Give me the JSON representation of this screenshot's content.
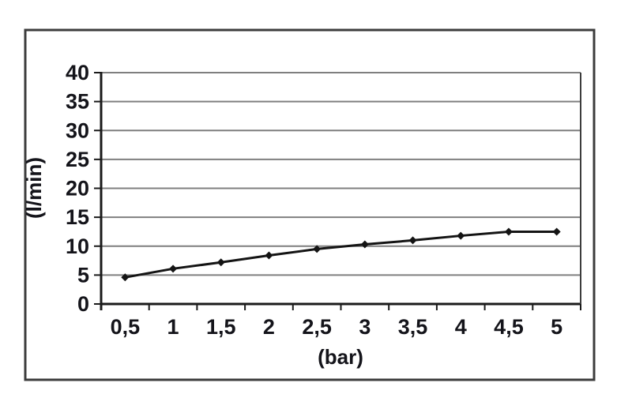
{
  "chart_data": {
    "type": "line",
    "categories": [
      "0,5",
      "1",
      "1,5",
      "2",
      "2,5",
      "3",
      "3,5",
      "4",
      "4,5",
      "5"
    ],
    "x_values_bar": [
      0.5,
      1,
      1.5,
      2,
      2.5,
      3,
      3.5,
      4,
      4.5,
      5
    ],
    "series": [
      {
        "values": [
          4.6,
          6.1,
          7.2,
          8.4,
          9.5,
          10.3,
          11.0,
          11.8,
          12.5,
          12.5
        ]
      }
    ],
    "title": "",
    "xlabel": "(bar)",
    "ylabel": "(l/min)",
    "ylim": [
      0,
      40
    ],
    "yticks": [
      0,
      5,
      10,
      15,
      20,
      25,
      30,
      35,
      40
    ],
    "grid": "horizontal-only",
    "legend": "none",
    "marker": "diamond",
    "decimal_separator": ",",
    "colors": {
      "series": "#141414",
      "gridline": "#7f7f7f",
      "axis": "#1a1a1a",
      "text": "#14141a",
      "figure_border": "#3c3c3c",
      "background": "#ffffff"
    }
  }
}
